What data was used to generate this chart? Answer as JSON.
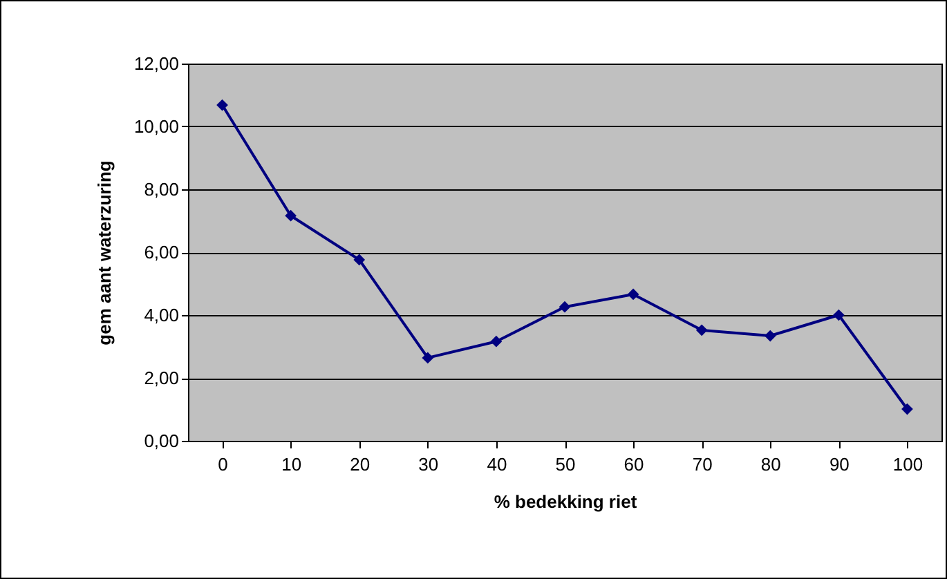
{
  "chart_data": {
    "type": "line",
    "xlabel": "% bedekking riet",
    "ylabel": "gem aant waterzuring",
    "categories": [
      "0",
      "10",
      "20",
      "30",
      "40",
      "50",
      "60",
      "70",
      "80",
      "90",
      "100"
    ],
    "series": [
      {
        "color": "#000080",
        "values": [
          10.68,
          7.16,
          5.76,
          2.64,
          3.16,
          4.26,
          4.66,
          3.52,
          3.34,
          4.0,
          1.01
        ]
      }
    ],
    "ylim": [
      0,
      12
    ],
    "yticks": [
      {
        "value": 0,
        "label": "0,00"
      },
      {
        "value": 2,
        "label": "2,00"
      },
      {
        "value": 4,
        "label": "4,00"
      },
      {
        "value": 6,
        "label": "6,00"
      },
      {
        "value": 8,
        "label": "8,00"
      },
      {
        "value": 10,
        "label": "10,00"
      },
      {
        "value": 12,
        "label": "12,00"
      }
    ],
    "grid": "y",
    "marker": "diamond"
  }
}
